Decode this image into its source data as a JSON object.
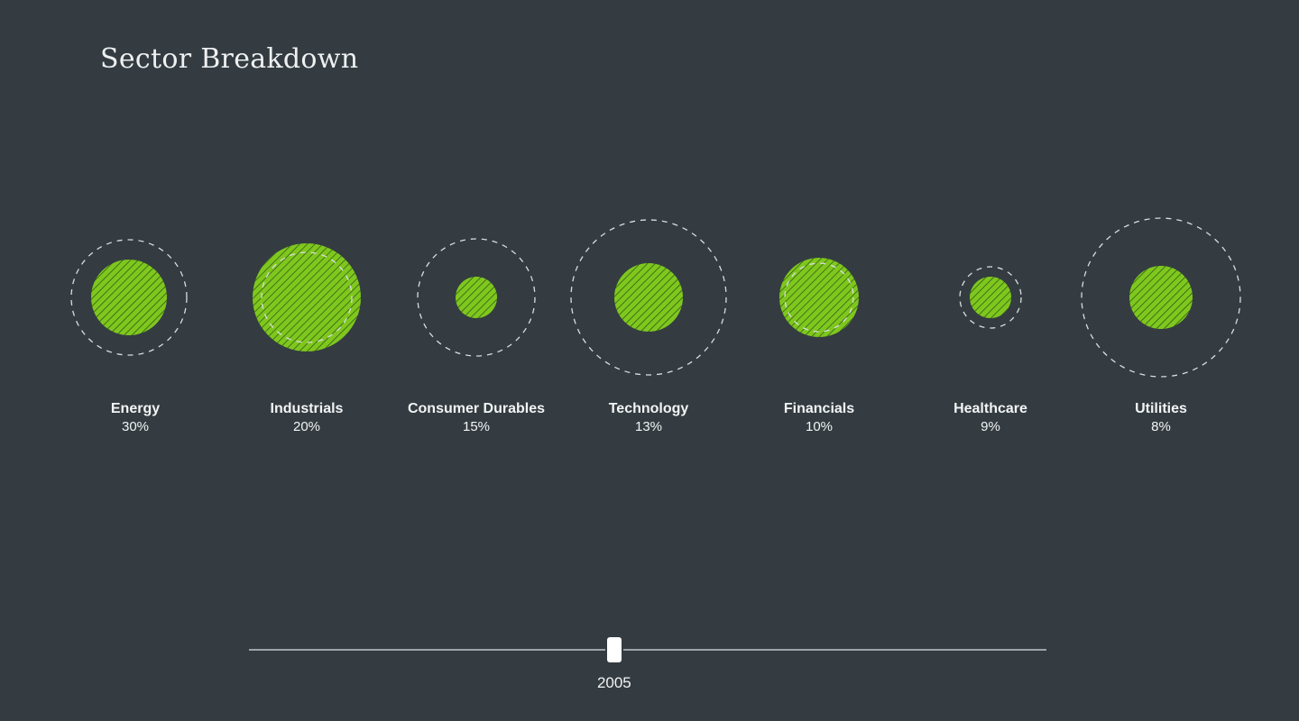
{
  "page": {
    "title": "Sector Breakdown"
  },
  "colors": {
    "background": "#343c41",
    "bubble_fill": "#7ec81e",
    "hatch_stroke": "#2f4a14",
    "dashed_ring": "#d9dde0",
    "text": "#f2f4f5"
  },
  "chart_data": {
    "type": "bubble",
    "title": "Sector Breakdown",
    "series": [
      {
        "name": "Energy",
        "label": "30%",
        "value": 30
      },
      {
        "name": "Industrials",
        "label": "20%",
        "value": 20
      },
      {
        "name": "Consumer Durables",
        "label": "15%",
        "value": 15
      },
      {
        "name": "Technology",
        "label": "13%",
        "value": 13
      },
      {
        "name": "Financials",
        "label": "10%",
        "value": 10
      },
      {
        "name": "Healthcare",
        "label": "9%",
        "value": 9
      },
      {
        "name": "Utilities",
        "label": "8%",
        "value": 8
      }
    ]
  },
  "slider": {
    "value_label": "2005",
    "position_fraction": 0.458
  }
}
